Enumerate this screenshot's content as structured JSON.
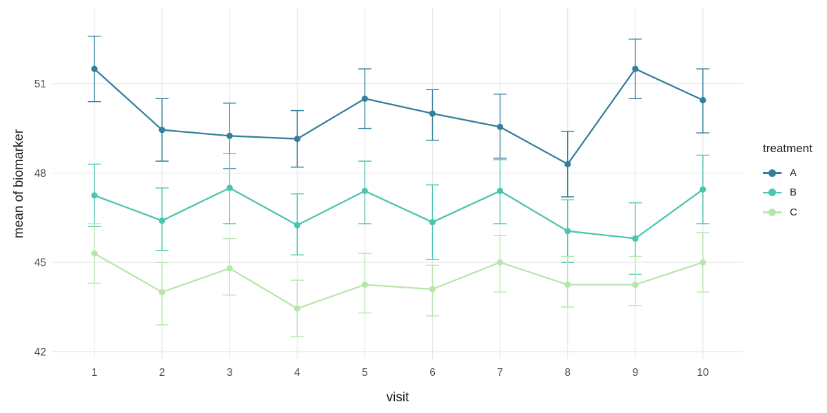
{
  "chart_data": {
    "type": "line",
    "title": "",
    "xlabel": "visit",
    "ylabel": "mean of biomarker",
    "legend_title": "treatment",
    "legend_position": "right",
    "grid": "major-only",
    "background_color": "#ffffff",
    "gridline_color": "#e8e8e8",
    "tick_label_color": "#4d4d4d",
    "x": [
      1,
      2,
      3,
      4,
      5,
      6,
      7,
      8,
      9,
      10
    ],
    "x_tick_labels": [
      "1",
      "2",
      "3",
      "4",
      "5",
      "6",
      "7",
      "8",
      "9",
      "10"
    ],
    "y_ticks": [
      42,
      45,
      48,
      51
    ],
    "y_tick_labels": [
      "42",
      "45",
      "48",
      "51"
    ],
    "ylim": [
      41.7,
      53.6
    ],
    "series": [
      {
        "name": "A",
        "color": "#337f9d",
        "values": [
          51.5,
          49.45,
          49.25,
          49.15,
          50.5,
          50.0,
          49.55,
          48.3,
          51.5,
          50.45
        ],
        "error_lower": [
          50.4,
          48.4,
          48.15,
          48.2,
          49.5,
          49.1,
          48.5,
          47.2,
          50.5,
          49.35
        ],
        "error_upper": [
          52.6,
          50.5,
          50.35,
          50.1,
          51.5,
          50.8,
          50.65,
          49.4,
          52.5,
          51.5
        ]
      },
      {
        "name": "B",
        "color": "#4ac5ae",
        "values": [
          47.25,
          46.4,
          47.5,
          46.25,
          47.4,
          46.35,
          47.4,
          46.05,
          45.8,
          47.45
        ],
        "error_lower": [
          46.2,
          45.4,
          46.3,
          45.25,
          46.3,
          45.1,
          46.3,
          45.0,
          44.6,
          46.3
        ],
        "error_upper": [
          48.3,
          47.5,
          48.65,
          47.3,
          48.4,
          47.6,
          48.45,
          47.1,
          47.0,
          48.6
        ]
      },
      {
        "name": "C",
        "color": "#b7e6ab",
        "values": [
          45.3,
          44.0,
          44.8,
          43.45,
          44.25,
          44.1,
          45.0,
          44.25,
          44.25,
          45.0
        ],
        "error_lower": [
          44.3,
          42.9,
          43.9,
          42.5,
          43.3,
          43.2,
          44.0,
          43.5,
          43.55,
          44.0
        ],
        "error_upper": [
          46.3,
          45.0,
          45.8,
          44.4,
          45.3,
          44.9,
          45.9,
          45.2,
          45.2,
          46.0
        ]
      }
    ]
  }
}
